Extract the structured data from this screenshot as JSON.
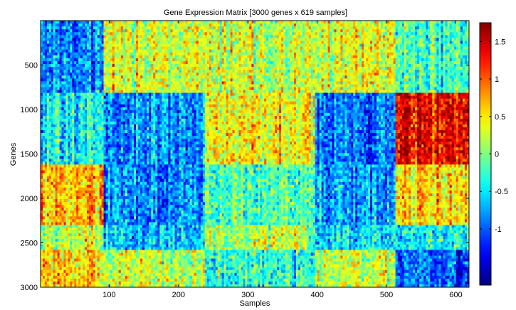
{
  "chart_data": {
    "type": "heatmap",
    "title": "Gene Expression Matrix [3000 genes x 619 samples]",
    "xlabel": "Samples",
    "ylabel": "Genes",
    "xlim": [
      1,
      619
    ],
    "ylim": [
      1,
      3000
    ],
    "x_ticks": [
      {
        "value": 100,
        "label": "100"
      },
      {
        "value": 200,
        "label": "200"
      },
      {
        "value": 300,
        "label": "300"
      },
      {
        "value": 400,
        "label": "400"
      },
      {
        "value": 500,
        "label": "500"
      },
      {
        "value": 600,
        "label": "600"
      }
    ],
    "y_ticks": [
      {
        "value": 500,
        "label": "500"
      },
      {
        "value": 1000,
        "label": "1000"
      },
      {
        "value": 1500,
        "label": "1500"
      },
      {
        "value": 2000,
        "label": "2000"
      },
      {
        "value": 2500,
        "label": "2500"
      },
      {
        "value": 3000,
        "label": "3000"
      }
    ],
    "colormap": "jet",
    "color_range": [
      -1.75,
      1.75
    ],
    "colorbar_ticks": [
      {
        "value": 1.5,
        "label": "1.5"
      },
      {
        "value": 1,
        "label": "1"
      },
      {
        "value": 0.5,
        "label": "0.5"
      },
      {
        "value": 0,
        "label": "0"
      },
      {
        "value": -0.5,
        "label": "-0.5"
      },
      {
        "value": -1,
        "label": "-1"
      }
    ],
    "sample_boundaries": [
      1,
      92,
      238,
      397,
      513,
      619
    ],
    "gene_boundaries": [
      1,
      814,
      1620,
      2300,
      2580,
      3000
    ],
    "block_means": [
      [
        -0.85,
        0.35,
        0.25,
        0.3,
        -0.2
      ],
      [
        -0.4,
        -0.8,
        0.45,
        -0.9,
        1.4
      ],
      [
        0.7,
        -0.85,
        -0.15,
        -0.75,
        0.5
      ],
      [
        0.2,
        -0.6,
        0.2,
        -0.5,
        -0.4
      ],
      [
        0.6,
        0.2,
        -0.3,
        0.25,
        -0.95
      ]
    ]
  }
}
